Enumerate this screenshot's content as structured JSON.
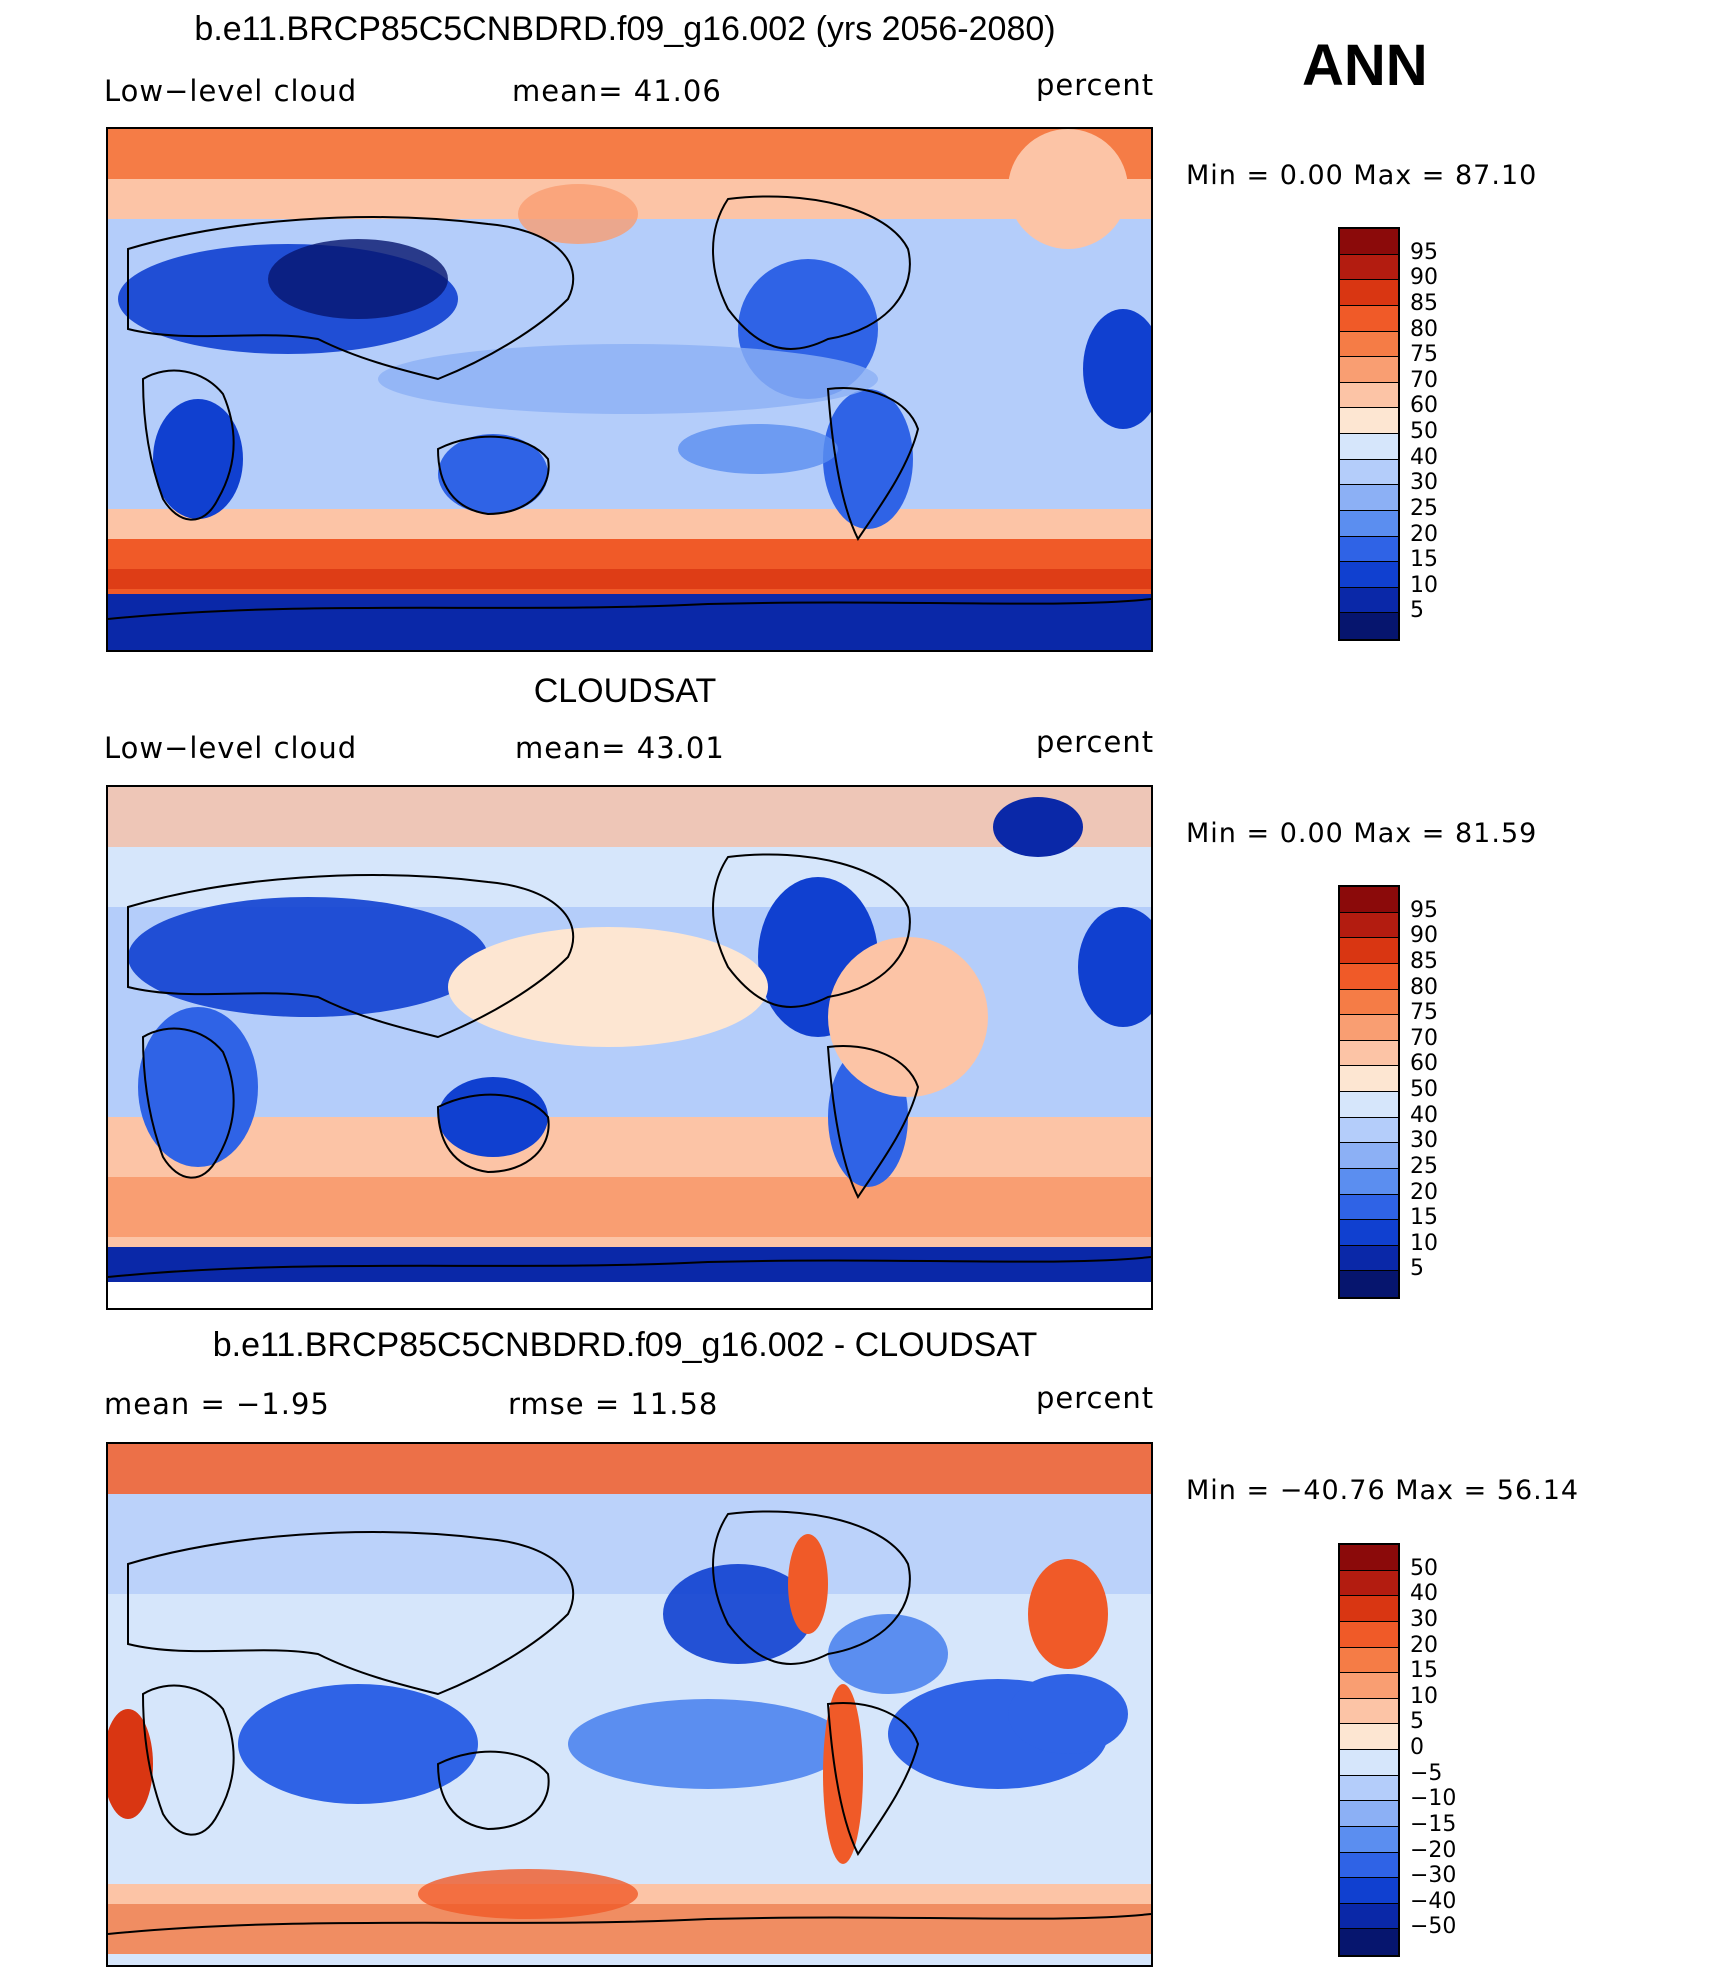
{
  "season": "ANN",
  "panels": [
    {
      "title": "b.e11.BRCP85C5CNBDRD.f09_g16.002 (yrs 2056-2080)",
      "left_label": "Low−level cloud",
      "center_label": "mean=   41.06",
      "right_label": "percent",
      "minmax": "Min =     0.00  Max =    87.10",
      "colorbar_labels": [
        "95",
        "90",
        "85",
        "80",
        "75",
        "70",
        "60",
        "50",
        "40",
        "30",
        "25",
        "20",
        "15",
        "10",
        "5"
      ],
      "colorbar_colors": [
        "#8b0a0a",
        "#b31c10",
        "#d93612",
        "#f05a28",
        "#f57c46",
        "#f99e72",
        "#fcc4a6",
        "#fde6d2",
        "#d6e6fb",
        "#b4cdfa",
        "#8cb0f5",
        "#5b8ef0",
        "#2f63e6",
        "#1040d0",
        "#0a28a8",
        "#06156e"
      ],
      "mean": 41.06,
      "min": 0.0,
      "max": 87.1
    },
    {
      "title": "CLOUDSAT",
      "left_label": "Low−level cloud",
      "center_label": "mean=   43.01",
      "right_label": "percent",
      "minmax": "Min =     0.00  Max =    81.59",
      "colorbar_labels": [
        "95",
        "90",
        "85",
        "80",
        "75",
        "70",
        "60",
        "50",
        "40",
        "30",
        "25",
        "20",
        "15",
        "10",
        "5"
      ],
      "colorbar_colors": [
        "#8b0a0a",
        "#b31c10",
        "#d93612",
        "#f05a28",
        "#f57c46",
        "#f99e72",
        "#fcc4a6",
        "#fde6d2",
        "#d6e6fb",
        "#b4cdfa",
        "#8cb0f5",
        "#5b8ef0",
        "#2f63e6",
        "#1040d0",
        "#0a28a8",
        "#06156e"
      ],
      "mean": 43.01,
      "min": 0.0,
      "max": 81.59
    },
    {
      "title": "b.e11.BRCP85C5CNBDRD.f09_g16.002 - CLOUDSAT",
      "left_label": "mean  =   −1.95",
      "center_label": "rmse  =   11.58",
      "right_label": "percent",
      "minmax": "Min = −40.76  Max =    56.14",
      "colorbar_labels": [
        "50",
        "40",
        "30",
        "20",
        "15",
        "10",
        "5",
        "0",
        "−5",
        "−10",
        "−15",
        "−20",
        "−30",
        "−40",
        "−50"
      ],
      "colorbar_colors": [
        "#8b0a0a",
        "#b31c10",
        "#d93612",
        "#f05a28",
        "#f57c46",
        "#f99e72",
        "#fcc4a6",
        "#fde6d2",
        "#d6e6fb",
        "#b4cdfa",
        "#8cb0f5",
        "#5b8ef0",
        "#2f63e6",
        "#1040d0",
        "#0a28a8",
        "#06156e"
      ],
      "mean": -1.95,
      "rmse": 11.58,
      "min": -40.76,
      "max": 56.14
    }
  ]
}
